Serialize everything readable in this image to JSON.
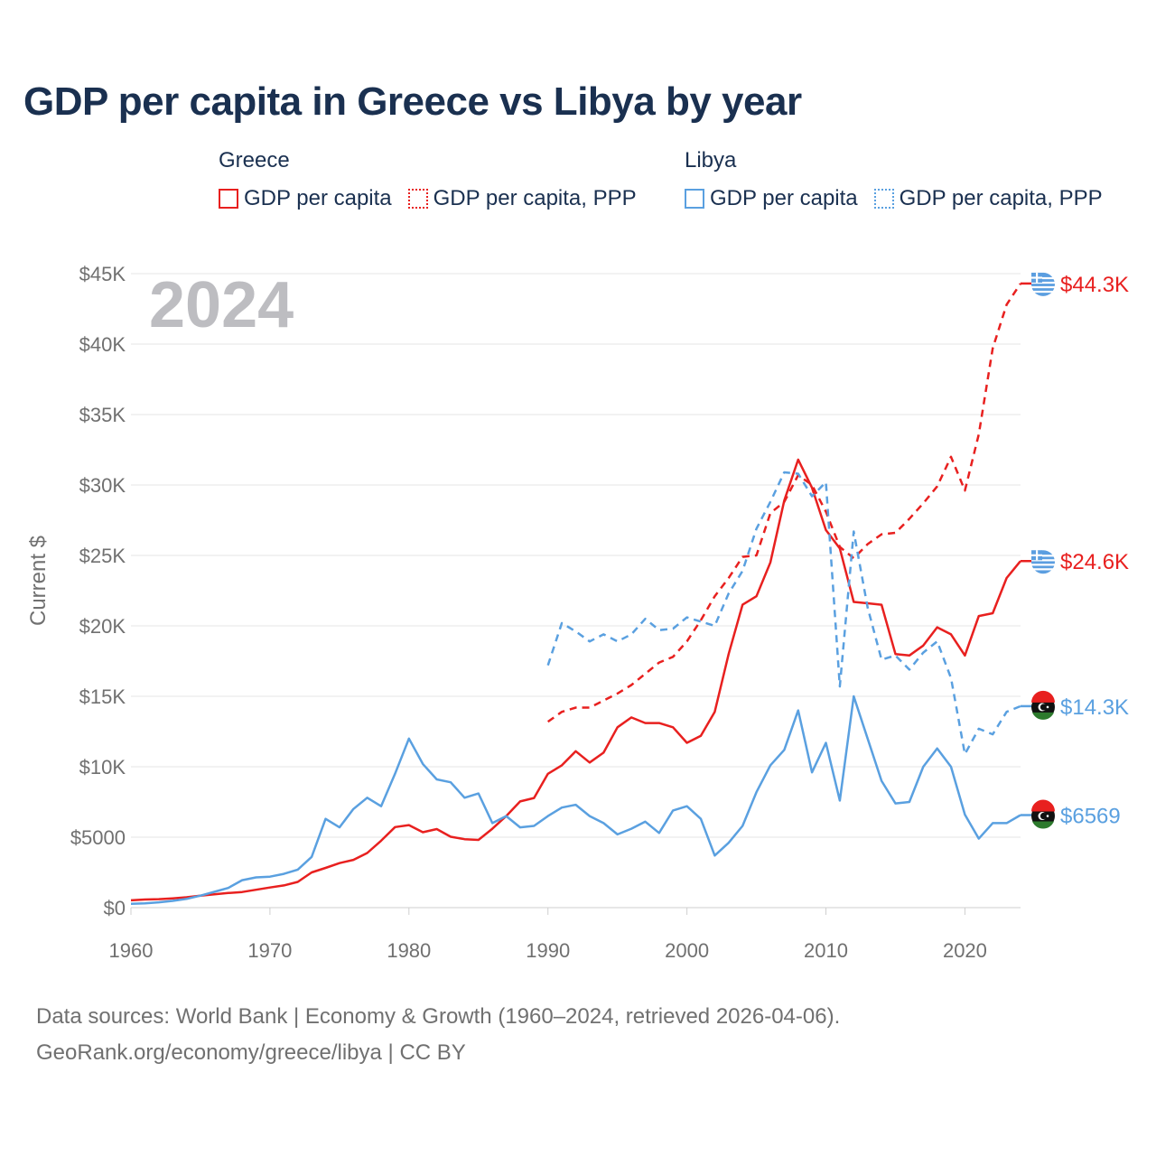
{
  "title": "GDP per capita in Greece vs Libya by year",
  "legend": {
    "greece": {
      "name": "Greece",
      "items": [
        "GDP per capita",
        "GDP per capita, PPP"
      ]
    },
    "libya": {
      "name": "Libya",
      "items": [
        "GDP per capita",
        "GDP per capita, PPP"
      ]
    }
  },
  "source": {
    "line1": "Data sources: World Bank | Economy & Growth (1960–2024, retrieved 2026-04-06).",
    "line2": "GeoRank.org/economy/greece/libya | CC BY"
  },
  "colors": {
    "greece": "#e8201f",
    "libya": "#5aa0e0"
  },
  "chart_data": {
    "type": "line",
    "year_label": "2024",
    "ylabel": "Current $",
    "xlim": [
      1960,
      2024
    ],
    "ylim": [
      0,
      45000
    ],
    "x_ticks": [
      "1960",
      "1970",
      "1980",
      "1990",
      "2000",
      "2010",
      "2020"
    ],
    "x_tick_values": [
      1960,
      1970,
      1980,
      1990,
      2000,
      2010,
      2020
    ],
    "y_ticks": [
      "$0",
      "$5000",
      "$10K",
      "$15K",
      "$20K",
      "$25K",
      "$30K",
      "$35K",
      "$40K",
      "$45K"
    ],
    "y_tick_values": [
      0,
      5000,
      10000,
      15000,
      20000,
      25000,
      30000,
      35000,
      40000,
      45000
    ],
    "series": [
      {
        "name": "Greece GDP per capita",
        "country": "greece",
        "style": "solid",
        "start": 1960,
        "end_label": "$24.6K",
        "values": [
          520,
          580,
          600,
          660,
          740,
          850,
          950,
          1040,
          1110,
          1270,
          1430,
          1580,
          1830,
          2500,
          2820,
          3160,
          3390,
          3880,
          4750,
          5720,
          5860,
          5350,
          5580,
          5030,
          4860,
          4810,
          5600,
          6500,
          7540,
          7780,
          9500,
          10100,
          11100,
          10300,
          11000,
          12800,
          13500,
          13100,
          13100,
          12800,
          11700,
          12200,
          13900,
          18000,
          21500,
          22100,
          24500,
          28900,
          31800,
          29800,
          26800,
          25500,
          21700,
          21600,
          21500,
          18000,
          17900,
          18600,
          19900,
          19400,
          17900,
          20700,
          20900,
          23400,
          24600
        ]
      },
      {
        "name": "Greece GDP per capita, PPP",
        "country": "greece",
        "style": "dash",
        "start": 1990,
        "end_label": "$44.3K",
        "values": [
          13200,
          13900,
          14200,
          14200,
          14700,
          15200,
          15800,
          16600,
          17400,
          17800,
          18900,
          20400,
          22100,
          23400,
          24900,
          25000,
          28000,
          28800,
          30700,
          30000,
          28100,
          25600,
          24800,
          25800,
          26500,
          26600,
          27600,
          28700,
          29900,
          32000,
          29600,
          33600,
          39700,
          42800,
          44300
        ]
      },
      {
        "name": "Libya GDP per capita",
        "country": "libya",
        "style": "solid",
        "start": 1960,
        "end_label": "$6569",
        "values": [
          270,
          310,
          380,
          480,
          620,
          850,
          1120,
          1400,
          1950,
          2150,
          2200,
          2400,
          2700,
          3600,
          6300,
          5700,
          7000,
          7800,
          7200,
          9500,
          12000,
          10200,
          9100,
          8900,
          7800,
          8100,
          6000,
          6500,
          5700,
          5800,
          6500,
          7100,
          7300,
          6500,
          6000,
          5200,
          5600,
          6100,
          5300,
          6900,
          7200,
          6300,
          3700,
          4600,
          5800,
          8200,
          10100,
          11200,
          14000,
          9600,
          11700,
          7600,
          15000,
          12000,
          9000,
          7400,
          7500,
          10000,
          11300,
          10000,
          6600,
          4900,
          6000,
          6000,
          6569
        ]
      },
      {
        "name": "Libya GDP per capita, PPP",
        "country": "libya",
        "style": "dash",
        "start": 1990,
        "end_label": "$14.3K",
        "values": [
          17200,
          20200,
          19600,
          18900,
          19400,
          18900,
          19400,
          20500,
          19700,
          19800,
          20600,
          20300,
          20000,
          22300,
          23900,
          26900,
          28800,
          30900,
          30800,
          29200,
          30200,
          15700,
          26700,
          21300,
          17600,
          17900,
          16900,
          18100,
          18900,
          16300,
          10900,
          12700,
          12300,
          13900,
          14300
        ]
      }
    ]
  }
}
